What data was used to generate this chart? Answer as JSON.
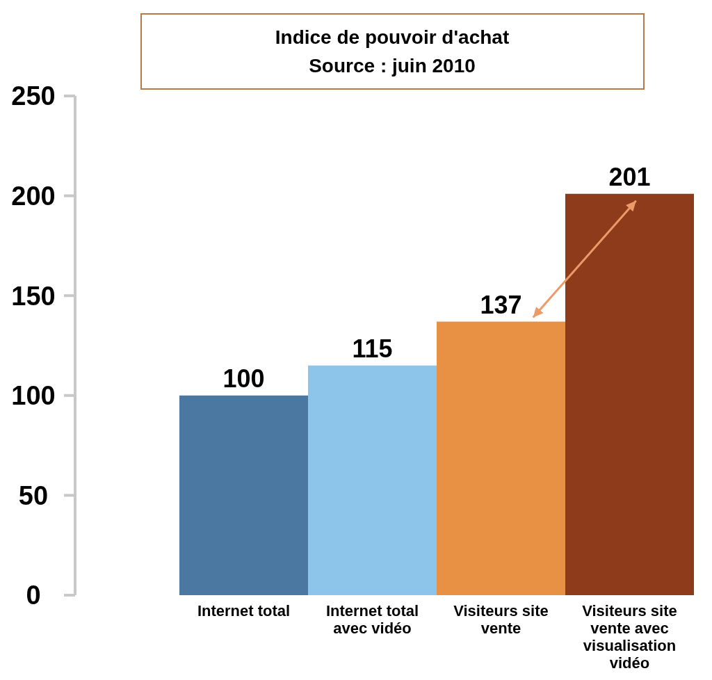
{
  "chart_data": {
    "type": "bar",
    "title": "Indice de pouvoir d'achat",
    "subtitle": "Source : juin 2010",
    "categories": [
      "Internet total",
      "Internet total avec vidéo",
      "Visiteurs site vente",
      "Visiteurs site vente avec visualisation vidéo"
    ],
    "values": [
      100,
      115,
      137,
      201
    ],
    "colors": [
      "#4a78a0",
      "#8cc4ea",
      "#e89044",
      "#8e3b1c"
    ],
    "ylim": [
      0,
      250
    ],
    "yticks": [
      0,
      50,
      100,
      150,
      200,
      250
    ],
    "data_labels": true
  }
}
